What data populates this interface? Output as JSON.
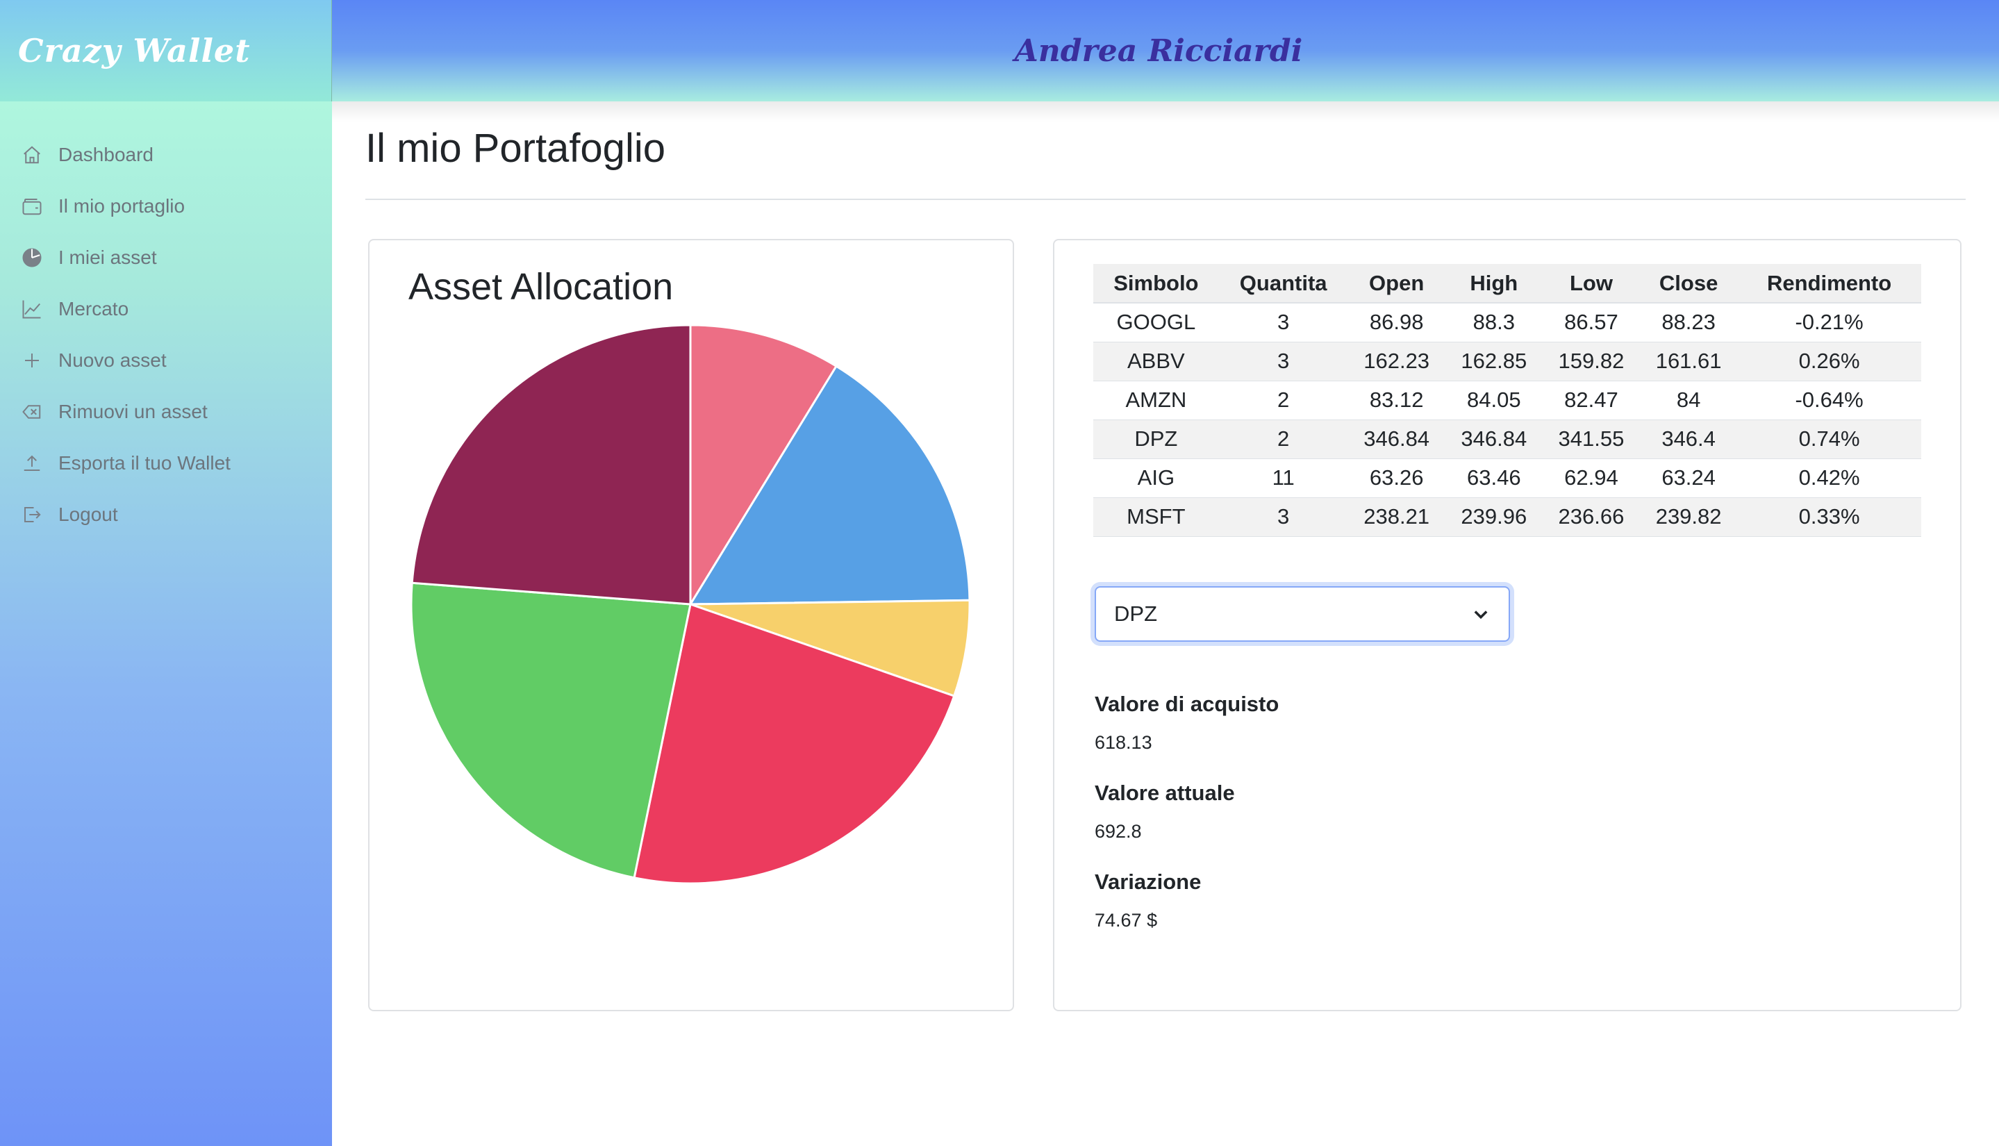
{
  "app": {
    "brand": "Crazy Wallet",
    "user": "Andrea Ricciardi"
  },
  "sidebar": {
    "items": [
      {
        "label": "Dashboard",
        "icon": "house-icon"
      },
      {
        "label": "Il mio portaglio",
        "icon": "wallet-icon"
      },
      {
        "label": "I miei asset",
        "icon": "pie-chart-icon"
      },
      {
        "label": "Mercato",
        "icon": "graph-up-icon"
      },
      {
        "label": "Nuovo asset",
        "icon": "plus-icon"
      },
      {
        "label": "Rimuovi un asset",
        "icon": "backspace-icon"
      },
      {
        "label": "Esporta il tuo Wallet",
        "icon": "upload-icon"
      },
      {
        "label": "Logout",
        "icon": "box-arrow-right-icon"
      }
    ]
  },
  "main": {
    "title": "Il mio Portafoglio",
    "chart_title": "Asset Allocation",
    "table": {
      "headers": [
        "Simbolo",
        "Quantita",
        "Open",
        "High",
        "Low",
        "Close",
        "Rendimento"
      ],
      "rows": [
        [
          "GOOGL",
          "3",
          "86.98",
          "88.3",
          "86.57",
          "88.23",
          "-0.21%"
        ],
        [
          "ABBV",
          "3",
          "162.23",
          "162.85",
          "159.82",
          "161.61",
          "0.26%"
        ],
        [
          "AMZN",
          "2",
          "83.12",
          "84.05",
          "82.47",
          "84",
          "-0.64%"
        ],
        [
          "DPZ",
          "2",
          "346.84",
          "346.84",
          "341.55",
          "346.4",
          "0.74%"
        ],
        [
          "AIG",
          "11",
          "63.26",
          "63.46",
          "62.94",
          "63.24",
          "0.42%"
        ],
        [
          "MSFT",
          "3",
          "238.21",
          "239.96",
          "236.66",
          "239.82",
          "0.33%"
        ]
      ]
    },
    "select": {
      "value": "DPZ"
    },
    "details": {
      "purchase_label": "Valore di acquisto",
      "purchase_value": "618.13",
      "current_label": "Valore attuale",
      "current_value": "692.8",
      "change_label": "Variazione",
      "change_value": "74.67 $"
    }
  },
  "chart_data": {
    "type": "pie",
    "title": "Asset Allocation",
    "categories": [
      "GOOGL",
      "ABBV",
      "AMZN",
      "DPZ",
      "AIG",
      "MSFT"
    ],
    "values": [
      264.69,
      484.83,
      168,
      692.8,
      695.64,
      719.46
    ],
    "colors": [
      "#ed6e85",
      "#57a0e5",
      "#f7d06b",
      "#ec3b5e",
      "#61cc65",
      "#8f2553"
    ]
  }
}
